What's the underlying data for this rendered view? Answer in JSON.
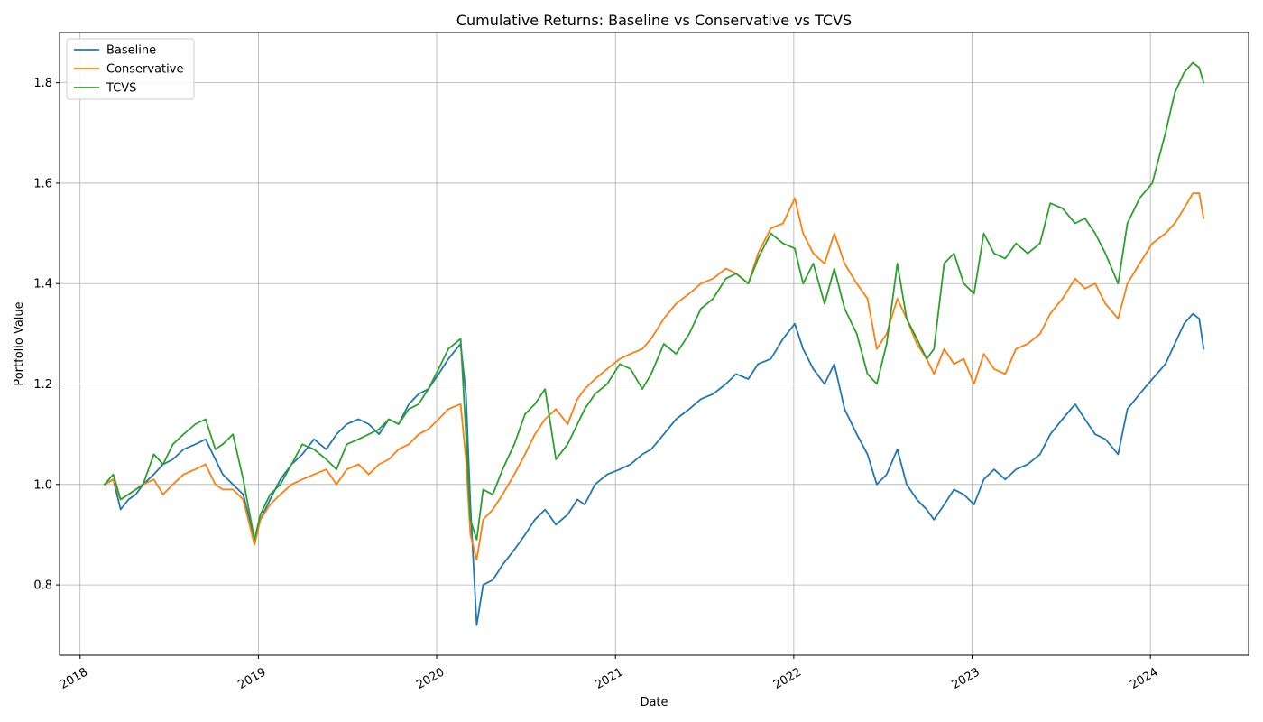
{
  "chart_data": {
    "type": "line",
    "title": "Cumulative Returns: Baseline vs Conservative vs TCVS",
    "xlabel": "Date",
    "ylabel": "Portfolio Value",
    "xlim": [
      "2017-11-20",
      "2024-07-20"
    ],
    "ylim": [
      0.66,
      1.9
    ],
    "grid": true,
    "legend_position": "upper-left",
    "x_ticks": [
      "2018-01-01",
      "2019-01-01",
      "2020-01-01",
      "2021-01-01",
      "2022-01-01",
      "2023-01-01",
      "2024-01-01"
    ],
    "x_tick_labels": [
      "2018",
      "2019",
      "2020",
      "2021",
      "2022",
      "2023",
      "2024"
    ],
    "y_ticks": [
      0.8,
      1.0,
      1.2,
      1.4,
      1.6,
      1.8
    ],
    "y_tick_labels": [
      "0.8",
      "1.0",
      "1.2",
      "1.4",
      "1.6",
      "1.8"
    ],
    "series": [
      {
        "name": "Baseline",
        "color": "#1f77b4",
        "x": [
          "2018-02-20",
          "2018-03-10",
          "2018-03-25",
          "2018-04-10",
          "2018-04-25",
          "2018-05-10",
          "2018-06-01",
          "2018-06-20",
          "2018-07-10",
          "2018-08-01",
          "2018-08-25",
          "2018-09-15",
          "2018-10-05",
          "2018-10-20",
          "2018-11-10",
          "2018-12-01",
          "2018-12-24",
          "2019-01-05",
          "2019-01-25",
          "2019-02-15",
          "2019-03-10",
          "2019-04-01",
          "2019-04-25",
          "2019-05-20",
          "2019-06-10",
          "2019-07-01",
          "2019-07-25",
          "2019-08-15",
          "2019-09-05",
          "2019-09-25",
          "2019-10-15",
          "2019-11-05",
          "2019-11-25",
          "2019-12-15",
          "2020-01-05",
          "2020-01-25",
          "2020-02-19",
          "2020-03-01",
          "2020-03-10",
          "2020-03-23",
          "2020-04-05",
          "2020-04-25",
          "2020-05-15",
          "2020-06-08",
          "2020-06-30",
          "2020-07-20",
          "2020-08-10",
          "2020-09-01",
          "2020-09-25",
          "2020-10-15",
          "2020-10-30",
          "2020-11-20",
          "2020-12-15",
          "2021-01-10",
          "2021-02-01",
          "2021-02-25",
          "2021-03-15",
          "2021-04-10",
          "2021-05-05",
          "2021-06-01",
          "2021-06-25",
          "2021-07-20",
          "2021-08-15",
          "2021-09-05",
          "2021-09-30",
          "2021-10-20",
          "2021-11-15",
          "2021-12-10",
          "2022-01-03",
          "2022-01-20",
          "2022-02-10",
          "2022-03-05",
          "2022-03-25",
          "2022-04-15",
          "2022-05-10",
          "2022-06-01",
          "2022-06-20",
          "2022-07-10",
          "2022-08-01",
          "2022-08-20",
          "2022-09-10",
          "2022-09-30",
          "2022-10-15",
          "2022-11-05",
          "2022-11-25",
          "2022-12-15",
          "2023-01-05",
          "2023-01-25",
          "2023-02-15",
          "2023-03-10",
          "2023-04-01",
          "2023-04-25",
          "2023-05-20",
          "2023-06-10",
          "2023-07-05",
          "2023-07-31",
          "2023-08-20",
          "2023-09-10",
          "2023-10-01",
          "2023-10-27",
          "2023-11-15",
          "2023-12-10",
          "2024-01-05",
          "2024-02-01",
          "2024-02-20",
          "2024-03-10",
          "2024-03-28",
          "2024-04-10",
          "2024-04-19"
        ],
        "values": [
          1.0,
          1.01,
          0.95,
          0.97,
          0.98,
          1.0,
          1.02,
          1.04,
          1.05,
          1.07,
          1.08,
          1.09,
          1.05,
          1.02,
          1.0,
          0.98,
          0.89,
          0.93,
          0.97,
          1.01,
          1.04,
          1.06,
          1.09,
          1.07,
          1.1,
          1.12,
          1.13,
          1.12,
          1.1,
          1.13,
          1.12,
          1.16,
          1.18,
          1.19,
          1.22,
          1.25,
          1.28,
          1.18,
          0.96,
          0.72,
          0.8,
          0.81,
          0.84,
          0.87,
          0.9,
          0.93,
          0.95,
          0.92,
          0.94,
          0.97,
          0.96,
          1.0,
          1.02,
          1.03,
          1.04,
          1.06,
          1.07,
          1.1,
          1.13,
          1.15,
          1.17,
          1.18,
          1.2,
          1.22,
          1.21,
          1.24,
          1.25,
          1.29,
          1.32,
          1.27,
          1.23,
          1.2,
          1.24,
          1.15,
          1.1,
          1.06,
          1.0,
          1.02,
          1.07,
          1.0,
          0.97,
          0.95,
          0.93,
          0.96,
          0.99,
          0.98,
          0.96,
          1.01,
          1.03,
          1.01,
          1.03,
          1.04,
          1.06,
          1.1,
          1.13,
          1.16,
          1.13,
          1.1,
          1.09,
          1.06,
          1.15,
          1.18,
          1.21,
          1.24,
          1.28,
          1.32,
          1.34,
          1.33,
          1.27
        ]
      },
      {
        "name": "Conservative",
        "color": "#ff7f0e",
        "x": [
          "2018-02-20",
          "2018-03-10",
          "2018-03-25",
          "2018-04-10",
          "2018-04-25",
          "2018-05-10",
          "2018-06-01",
          "2018-06-20",
          "2018-07-10",
          "2018-08-01",
          "2018-08-25",
          "2018-09-15",
          "2018-10-05",
          "2018-10-20",
          "2018-11-10",
          "2018-12-01",
          "2018-12-24",
          "2019-01-05",
          "2019-01-25",
          "2019-02-15",
          "2019-03-10",
          "2019-04-01",
          "2019-04-25",
          "2019-05-20",
          "2019-06-10",
          "2019-07-01",
          "2019-07-25",
          "2019-08-15",
          "2019-09-05",
          "2019-09-25",
          "2019-10-15",
          "2019-11-05",
          "2019-11-25",
          "2019-12-15",
          "2020-01-05",
          "2020-01-25",
          "2020-02-19",
          "2020-03-01",
          "2020-03-10",
          "2020-03-23",
          "2020-04-05",
          "2020-04-25",
          "2020-05-15",
          "2020-06-08",
          "2020-06-30",
          "2020-07-20",
          "2020-08-10",
          "2020-09-01",
          "2020-09-25",
          "2020-10-15",
          "2020-10-30",
          "2020-11-20",
          "2020-12-15",
          "2021-01-10",
          "2021-02-01",
          "2021-02-25",
          "2021-03-15",
          "2021-04-10",
          "2021-05-05",
          "2021-06-01",
          "2021-06-25",
          "2021-07-20",
          "2021-08-15",
          "2021-09-05",
          "2021-09-30",
          "2021-10-20",
          "2021-11-15",
          "2021-12-10",
          "2022-01-03",
          "2022-01-20",
          "2022-02-10",
          "2022-03-05",
          "2022-03-25",
          "2022-04-15",
          "2022-05-10",
          "2022-06-01",
          "2022-06-20",
          "2022-07-10",
          "2022-08-01",
          "2022-08-20",
          "2022-09-10",
          "2022-09-30",
          "2022-10-15",
          "2022-11-05",
          "2022-11-25",
          "2022-12-15",
          "2023-01-05",
          "2023-01-25",
          "2023-02-15",
          "2023-03-10",
          "2023-04-01",
          "2023-04-25",
          "2023-05-20",
          "2023-06-10",
          "2023-07-05",
          "2023-07-31",
          "2023-08-20",
          "2023-09-10",
          "2023-10-01",
          "2023-10-27",
          "2023-11-15",
          "2023-12-10",
          "2024-01-05",
          "2024-02-01",
          "2024-02-20",
          "2024-03-10",
          "2024-03-28",
          "2024-04-10",
          "2024-04-19"
        ],
        "values": [
          1.0,
          1.01,
          0.97,
          0.98,
          0.99,
          1.0,
          1.01,
          0.98,
          1.0,
          1.02,
          1.03,
          1.04,
          1.0,
          0.99,
          0.99,
          0.97,
          0.88,
          0.93,
          0.96,
          0.98,
          1.0,
          1.01,
          1.02,
          1.03,
          1.0,
          1.03,
          1.04,
          1.02,
          1.04,
          1.05,
          1.07,
          1.08,
          1.1,
          1.11,
          1.13,
          1.15,
          1.16,
          1.05,
          0.9,
          0.85,
          0.93,
          0.95,
          0.98,
          1.02,
          1.06,
          1.1,
          1.13,
          1.15,
          1.12,
          1.17,
          1.19,
          1.21,
          1.23,
          1.25,
          1.26,
          1.27,
          1.29,
          1.33,
          1.36,
          1.38,
          1.4,
          1.41,
          1.43,
          1.42,
          1.4,
          1.46,
          1.51,
          1.52,
          1.57,
          1.5,
          1.46,
          1.44,
          1.5,
          1.44,
          1.4,
          1.37,
          1.27,
          1.3,
          1.37,
          1.33,
          1.28,
          1.25,
          1.22,
          1.27,
          1.24,
          1.25,
          1.2,
          1.26,
          1.23,
          1.22,
          1.27,
          1.28,
          1.3,
          1.34,
          1.37,
          1.41,
          1.39,
          1.4,
          1.36,
          1.33,
          1.4,
          1.44,
          1.48,
          1.5,
          1.52,
          1.55,
          1.58,
          1.58,
          1.53
        ]
      },
      {
        "name": "TCVS",
        "color": "#2ca02c",
        "x": [
          "2018-02-20",
          "2018-03-10",
          "2018-03-25",
          "2018-04-10",
          "2018-04-25",
          "2018-05-10",
          "2018-06-01",
          "2018-06-20",
          "2018-07-10",
          "2018-08-01",
          "2018-08-25",
          "2018-09-15",
          "2018-10-05",
          "2018-10-20",
          "2018-11-10",
          "2018-12-01",
          "2018-12-24",
          "2019-01-05",
          "2019-01-25",
          "2019-02-15",
          "2019-03-10",
          "2019-04-01",
          "2019-04-25",
          "2019-05-20",
          "2019-06-10",
          "2019-07-01",
          "2019-07-25",
          "2019-08-15",
          "2019-09-05",
          "2019-09-25",
          "2019-10-15",
          "2019-11-05",
          "2019-11-25",
          "2019-12-15",
          "2020-01-05",
          "2020-01-25",
          "2020-02-19",
          "2020-03-01",
          "2020-03-10",
          "2020-03-23",
          "2020-04-05",
          "2020-04-25",
          "2020-05-15",
          "2020-06-08",
          "2020-06-30",
          "2020-07-20",
          "2020-08-10",
          "2020-09-01",
          "2020-09-25",
          "2020-10-15",
          "2020-10-30",
          "2020-11-20",
          "2020-12-15",
          "2021-01-10",
          "2021-02-01",
          "2021-02-25",
          "2021-03-15",
          "2021-04-10",
          "2021-05-05",
          "2021-06-01",
          "2021-06-25",
          "2021-07-20",
          "2021-08-15",
          "2021-09-05",
          "2021-09-30",
          "2021-10-20",
          "2021-11-15",
          "2021-12-10",
          "2022-01-03",
          "2022-01-20",
          "2022-02-10",
          "2022-03-05",
          "2022-03-25",
          "2022-04-15",
          "2022-05-10",
          "2022-06-01",
          "2022-06-20",
          "2022-07-10",
          "2022-08-01",
          "2022-08-20",
          "2022-09-10",
          "2022-09-30",
          "2022-10-15",
          "2022-11-05",
          "2022-11-25",
          "2022-12-15",
          "2023-01-05",
          "2023-01-25",
          "2023-02-15",
          "2023-03-10",
          "2023-04-01",
          "2023-04-25",
          "2023-05-20",
          "2023-06-10",
          "2023-07-05",
          "2023-07-31",
          "2023-08-20",
          "2023-09-10",
          "2023-10-01",
          "2023-10-27",
          "2023-11-15",
          "2023-12-10",
          "2024-01-05",
          "2024-02-01",
          "2024-02-20",
          "2024-03-10",
          "2024-03-28",
          "2024-04-10",
          "2024-04-19"
        ],
        "values": [
          1.0,
          1.02,
          0.97,
          0.98,
          0.99,
          1.0,
          1.06,
          1.04,
          1.08,
          1.1,
          1.12,
          1.13,
          1.07,
          1.08,
          1.1,
          1.01,
          0.89,
          0.94,
          0.98,
          1.0,
          1.04,
          1.08,
          1.07,
          1.05,
          1.03,
          1.08,
          1.09,
          1.1,
          1.11,
          1.13,
          1.12,
          1.15,
          1.16,
          1.19,
          1.23,
          1.27,
          1.29,
          1.1,
          0.93,
          0.89,
          0.99,
          0.98,
          1.03,
          1.08,
          1.14,
          1.16,
          1.19,
          1.05,
          1.08,
          1.12,
          1.15,
          1.18,
          1.2,
          1.24,
          1.23,
          1.19,
          1.22,
          1.28,
          1.26,
          1.3,
          1.35,
          1.37,
          1.41,
          1.42,
          1.4,
          1.45,
          1.5,
          1.48,
          1.47,
          1.4,
          1.44,
          1.36,
          1.43,
          1.35,
          1.3,
          1.22,
          1.2,
          1.28,
          1.44,
          1.33,
          1.29,
          1.25,
          1.27,
          1.44,
          1.46,
          1.4,
          1.38,
          1.5,
          1.46,
          1.45,
          1.48,
          1.46,
          1.48,
          1.56,
          1.55,
          1.52,
          1.53,
          1.5,
          1.46,
          1.4,
          1.52,
          1.57,
          1.6,
          1.7,
          1.78,
          1.82,
          1.84,
          1.83,
          1.8
        ]
      }
    ]
  }
}
